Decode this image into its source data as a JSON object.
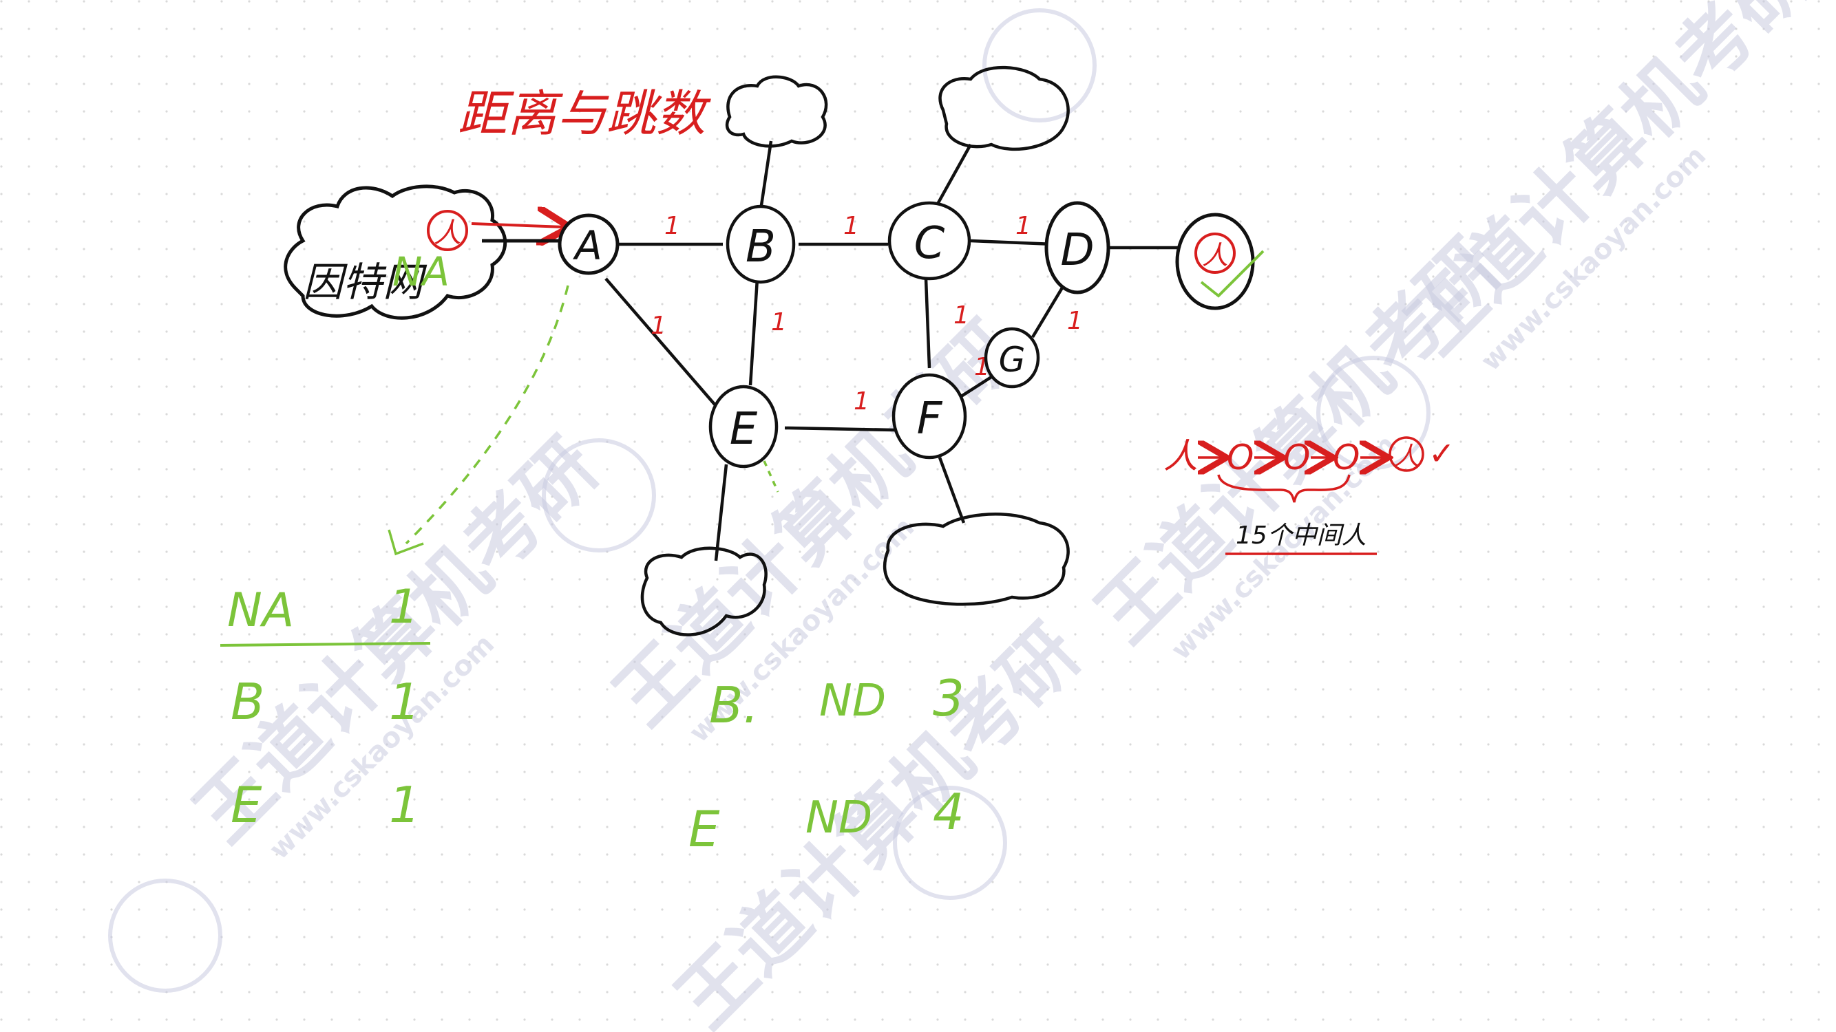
{
  "colors": {
    "ink": "#111111",
    "red": "#d81e1e",
    "green": "#7cc43a",
    "watermark": "#c9cbe0",
    "dot_grid": "#d9d9d9"
  },
  "title": "距离与跳数",
  "internet": {
    "label": "因特网",
    "network_label": "NA",
    "person": "人"
  },
  "nodes": {
    "A": "A",
    "B": "B",
    "C": "C",
    "D": "D",
    "E": "E",
    "F": "F",
    "G": "G",
    "dest_person": "人"
  },
  "edge_weight": "1",
  "routing_table": {
    "rows": [
      {
        "dest": "NA",
        "dist": "1"
      },
      {
        "dest": "B",
        "dist": "1"
      },
      {
        "dest": "E",
        "dist": "1"
      }
    ]
  },
  "neighbor_routes": [
    {
      "via": "B.",
      "net": "ND",
      "dist": "3"
    },
    {
      "via": "E",
      "net": "ND",
      "dist": "4"
    }
  ],
  "relay_chain": {
    "start": "人",
    "hop": "O",
    "end": "人",
    "check": "✓",
    "caption": "15个中间人"
  },
  "watermark": {
    "brand": "王道计算机考研",
    "url": "www.cskaoyan.com"
  }
}
